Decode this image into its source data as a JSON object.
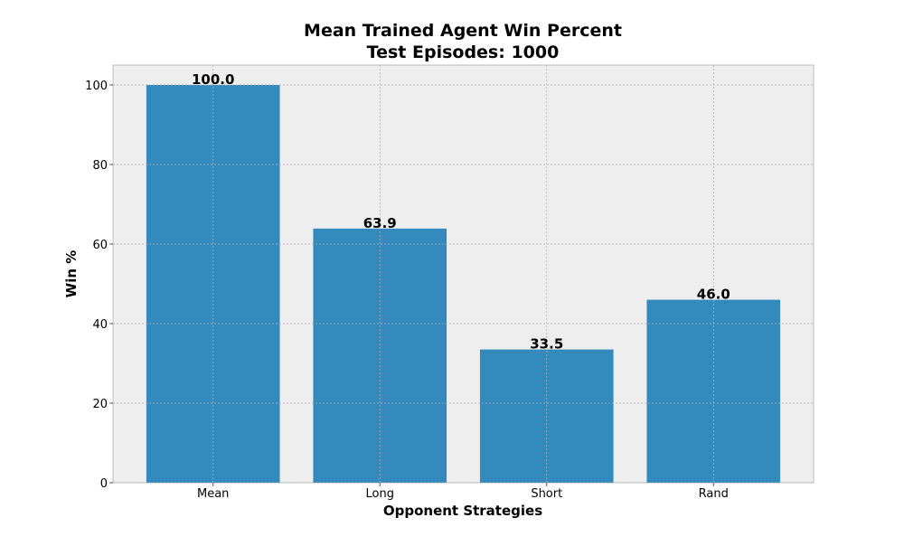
{
  "chart_data": {
    "type": "bar",
    "title": "Mean Trained Agent Win Percent",
    "subtitle": "Test Episodes: 1000",
    "xlabel": "Opponent Strategies",
    "ylabel": "Win %",
    "categories": [
      "Mean",
      "Long",
      "Short",
      "Rand"
    ],
    "values": [
      100.0,
      63.9,
      33.5,
      46.0
    ],
    "value_labels": [
      "100.0",
      "63.9",
      "33.5",
      "46.0"
    ],
    "ylim": [
      0,
      105
    ],
    "yticks": [
      0,
      20,
      40,
      60,
      80,
      100
    ],
    "grid": true,
    "legend": "none",
    "colors": {
      "bar": "#348abd",
      "plot_background": "#eeeeee",
      "grid": "#b0b0b0",
      "axes_edge": "#bcbcbc",
      "text": "#000000"
    }
  }
}
